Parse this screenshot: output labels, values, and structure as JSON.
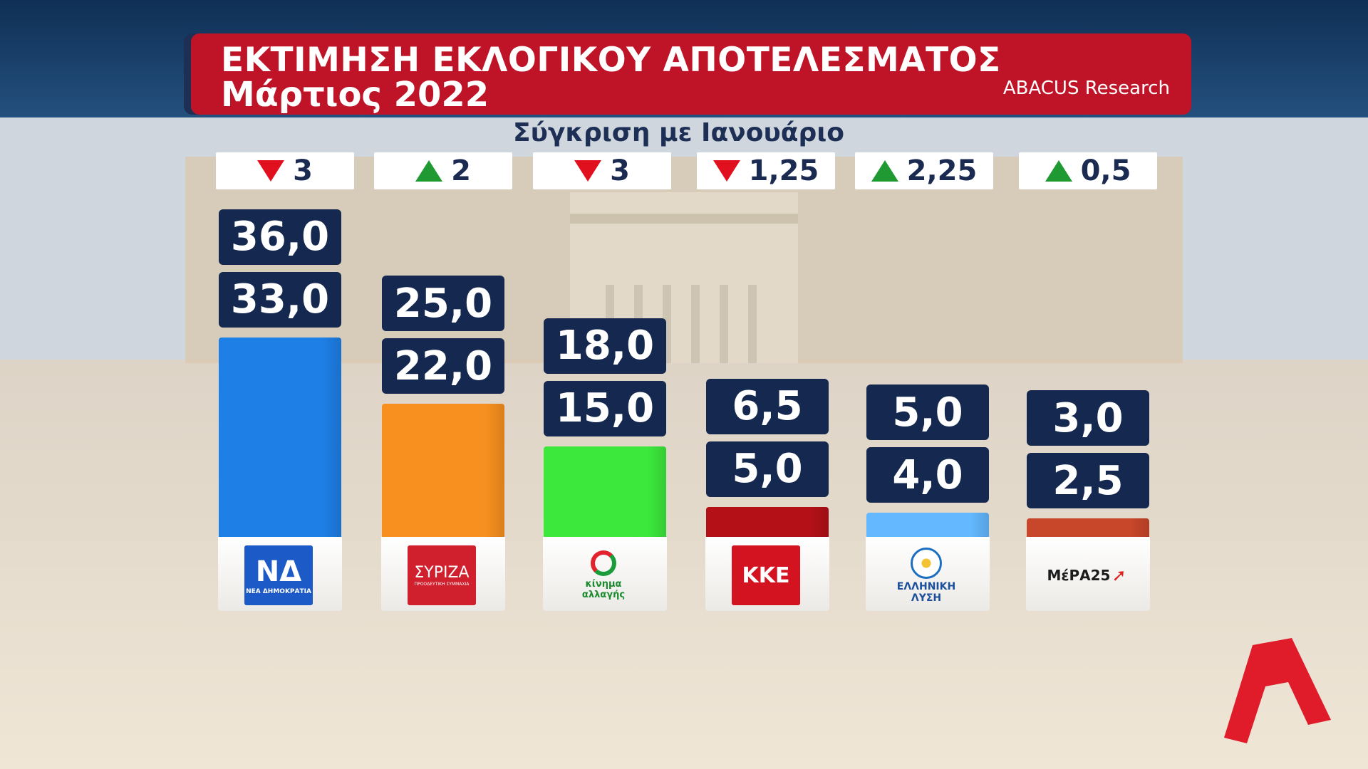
{
  "title": {
    "line1": "ΕΚΤΙΜΗΣΗ ΕΚΛΟΓΙΚΟΥ ΑΠΟΤΕΛΕΣΜΑΤΟΣ",
    "line2": "Μάρτιος 2022",
    "source": "ABACUS Research"
  },
  "subtitle": "Σύγκριση με Ιανουάριο",
  "parties": [
    {
      "logo_text": "ΝΔ",
      "logo_sub": "ΝΕΑ ΔΗΜΟΚΡΑΤΙΑ",
      "color": "#1e7fe6",
      "change_dir": "down",
      "change": "3",
      "current_label": "33,0",
      "upper_label": "36,0"
    },
    {
      "logo_text": "ΣΥΡΙΖΑ",
      "logo_sub": "ΠΡΟΟΔΕΥΤΙΚΗ ΣΥΜΜΑΧΙΑ",
      "color": "#f7901e",
      "change_dir": "up",
      "change": "2",
      "current_label": "22,0",
      "upper_label": "25,0"
    },
    {
      "logo_text": "κίνημα αλλαγής",
      "logo_sub": "",
      "color": "#3ce83c",
      "change_dir": "down",
      "change": "3",
      "current_label": "15,0",
      "upper_label": "18,0"
    },
    {
      "logo_text": "ΚΚΕ",
      "logo_sub": "",
      "color": "#b31018",
      "change_dir": "down",
      "change": "1,25",
      "current_label": "5,0",
      "upper_label": "6,5"
    },
    {
      "logo_text": "ΕΛΛΗΝΙΚΗ ΛΥΣΗ",
      "logo_sub": "",
      "color": "#63b8ff",
      "change_dir": "up",
      "change": "2,25",
      "current_label": "4,0",
      "upper_label": "5,0"
    },
    {
      "logo_text": "ΜέΡΑ25",
      "logo_sub": "",
      "color": "#c8462a",
      "change_dir": "up",
      "change": "0,5",
      "current_label": "2,5",
      "upper_label": "3,0"
    }
  ],
  "chart_data": {
    "type": "bar",
    "title": "ΕΚΤΙΜΗΣΗ ΕΚΛΟΓΙΚΟΥ ΑΠΟΤΕΛΕΣΜΑΤΟΣ Μάρτιος 2022",
    "subtitle": "Σύγκριση με Ιανουάριο",
    "categories": [
      "ΝΔ",
      "ΣΥΡΙΖΑ",
      "ΚΙΝΑΛ",
      "ΚΚΕ",
      "ΕΛΛΗΝΙΚΗ ΛΥΣΗ",
      "ΜέΡΑ25"
    ],
    "series": [
      {
        "values": [
          33.0,
          22.0,
          15.0,
          5.0,
          4.0,
          2.5
        ]
      },
      {
        "values": [
          36.0,
          25.0,
          18.0,
          6.5,
          5.0,
          3.0
        ]
      }
    ],
    "changes": [
      -3,
      2,
      -3,
      -1.25,
      2.25,
      0.5
    ],
    "grid": false
  }
}
